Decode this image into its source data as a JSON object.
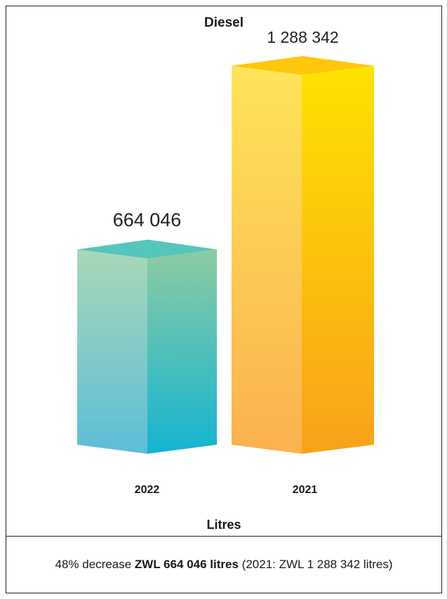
{
  "chart_data": {
    "type": "bar",
    "title": "Diesel",
    "categories": [
      "2022",
      "2021"
    ],
    "values": [
      664046,
      1288342
    ],
    "value_labels": [
      "664 046",
      "1 288 342"
    ],
    "ylabel": "Litres",
    "ylim": [
      0,
      1300000
    ],
    "grid": false,
    "legend": "none"
  },
  "colors": {
    "bar_2022_top": "#54C6BB",
    "bar_2022_front_top": "#A8D8B8",
    "bar_2022_front_bottom": "#5DBDD8",
    "bar_2022_side_top": "#8ECBA2",
    "bar_2022_side_bottom": "#14B4D2",
    "bar_2021_top": "#FFC70B",
    "bar_2021_front_top": "#FEE459",
    "bar_2021_front_bottom": "#FBB150",
    "bar_2021_side_top": "#FFE200",
    "bar_2021_side_bottom": "#F8A21A"
  },
  "footer": {
    "prefix": "48% decrease ",
    "highlight": "ZWL 664 046 litres",
    "suffix": " (2021: ZWL 1 288 342 litres)"
  }
}
